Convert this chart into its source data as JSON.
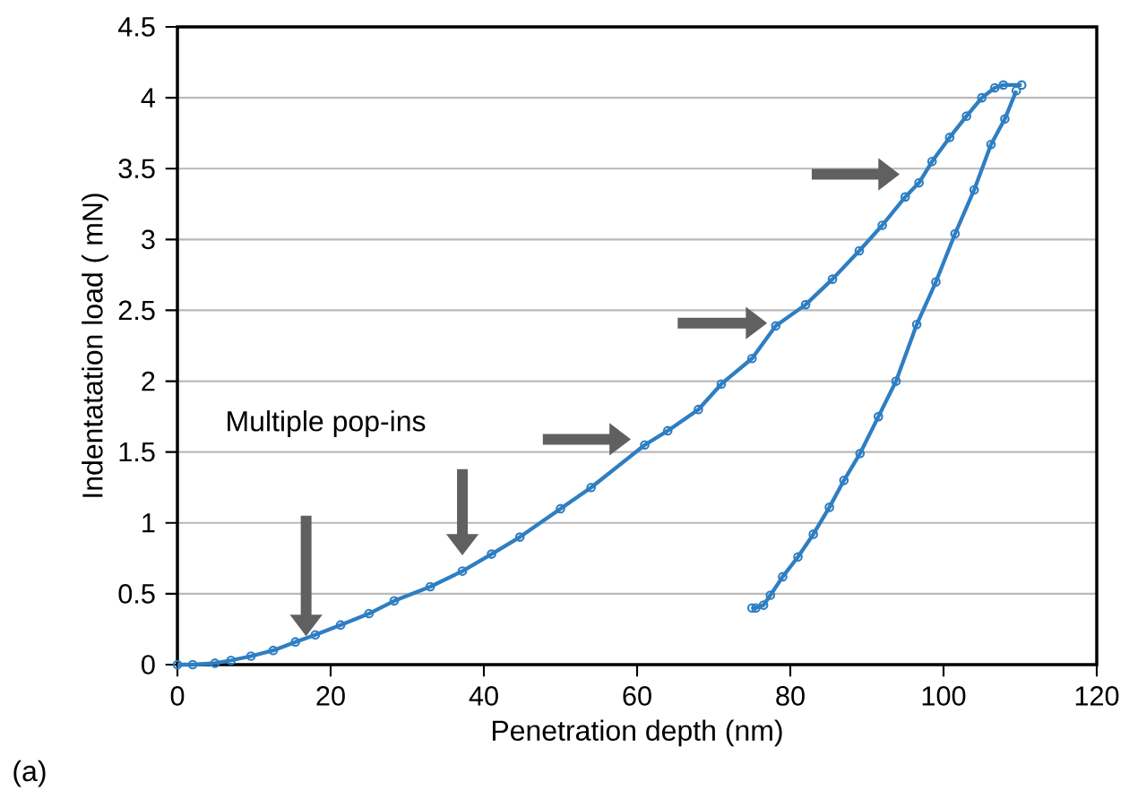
{
  "chart_data": {
    "type": "line",
    "xlabel": "Penetration depth (nm)",
    "ylabel": "Indentatation load ( mN)",
    "xlim": [
      0,
      120
    ],
    "ylim": [
      0,
      4.5
    ],
    "xticks": [
      0,
      20,
      40,
      60,
      80,
      100,
      120
    ],
    "yticks": [
      0,
      0.5,
      1,
      1.5,
      2,
      2.5,
      3,
      3.5,
      4,
      4.5
    ],
    "grid": "y",
    "marker": "circle",
    "annotations": [
      "Multiple pop-ins",
      "(a)"
    ],
    "series": [
      {
        "color": "#2e7ec2",
        "x": [
          0,
          2,
          4.9,
          7,
          9.6,
          12.5,
          15.4,
          18,
          21.3,
          25,
          28.3,
          33,
          37.2,
          41,
          44.7,
          50,
          54,
          61,
          64,
          68,
          71,
          75,
          78.1,
          82,
          85.5,
          89,
          92,
          95,
          96.8,
          98.5,
          100.8,
          103,
          105,
          106.7,
          107.8,
          110.2
        ],
        "values": [
          0,
          0,
          0.01,
          0.03,
          0.06,
          0.1,
          0.16,
          0.21,
          0.28,
          0.36,
          0.45,
          0.55,
          0.66,
          0.78,
          0.9,
          1.1,
          1.25,
          1.55,
          1.65,
          1.8,
          1.98,
          2.16,
          2.39,
          2.54,
          2.72,
          2.92,
          3.1,
          3.3,
          3.4,
          3.55,
          3.72,
          3.87,
          4.0,
          4.07,
          4.09,
          4.09
        ]
      },
      {
        "color": "#2e7ec2",
        "x": [
          109.5,
          108,
          106.2,
          104,
          101.5,
          99,
          96.5,
          93.8,
          91.5,
          89.1,
          87,
          85.1,
          83,
          81,
          79,
          77.4,
          76.5,
          75.5,
          75
        ],
        "values": [
          4.05,
          3.85,
          3.67,
          3.35,
          3.04,
          2.7,
          2.4,
          2.0,
          1.75,
          1.49,
          1.3,
          1.11,
          0.92,
          0.76,
          0.62,
          0.49,
          0.42,
          0.4,
          0.4
        ]
      }
    ]
  }
}
